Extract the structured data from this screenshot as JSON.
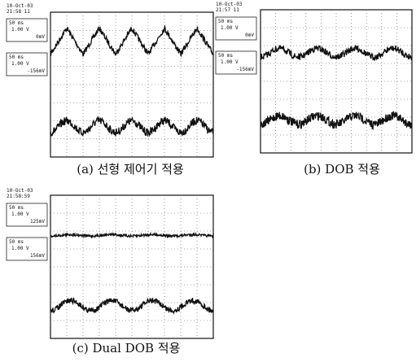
{
  "panels": [
    {
      "timestamp": [
        "10-Oct-03",
        "21:58 11"
      ],
      "channels": [
        {
          "time": "50 ms",
          "volts": "1.00 V",
          "offset": "0mV"
        },
        {
          "time": "50 ms",
          "volts": "1.00 V",
          "offset": "-156mV"
        }
      ],
      "caption": "(a) 선형 제어기 적용"
    },
    {
      "timestamp": [
        "10-Oct-03",
        "21:57 11"
      ],
      "channels": [
        {
          "time": "50 ms",
          "volts": "1.00 V",
          "offset": "0mV"
        },
        {
          "time": "50 ms",
          "volts": "1.00 V",
          "offset": "-156mV"
        }
      ],
      "caption": "(b) DOB 적용"
    },
    {
      "timestamp": [
        "10-Oct-03",
        "21:58:59"
      ],
      "channels": [
        {
          "time": "50 ms",
          "volts": "1.00 V",
          "offset": "125mV"
        },
        {
          "time": "50 ms",
          "volts": "1.00 V",
          "offset": "156mV"
        }
      ],
      "caption": "(c) Dual DOB 적용"
    }
  ]
}
